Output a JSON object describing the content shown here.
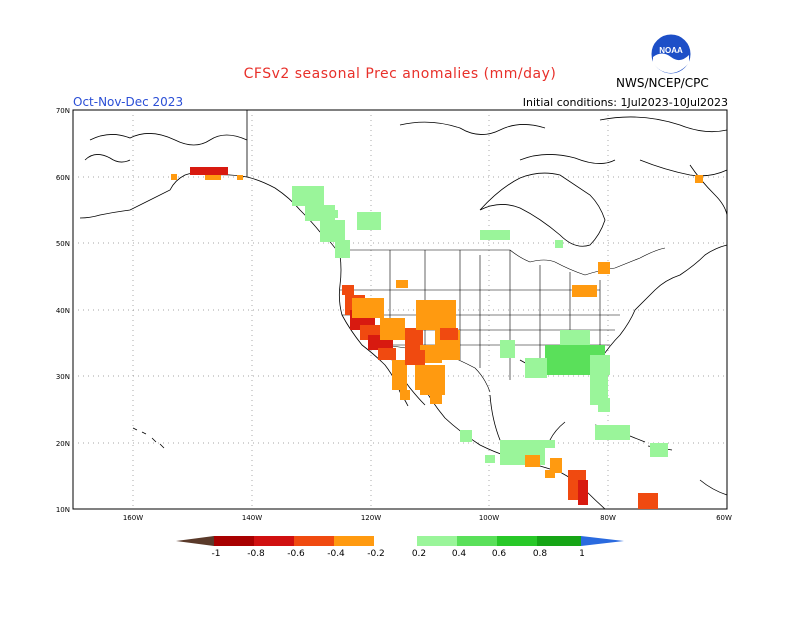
{
  "title": "CFSv2 seasonal Prec anomalies (mm/day)",
  "season": "Oct-Nov-Dec 2023",
  "initial_conditions": "Initial conditions: 1Jul2023-10Jul2023",
  "agency": "NWS/NCEP/CPC",
  "logo_text": "NOAA",
  "lat_labels": [
    "70N",
    "60N",
    "50N",
    "40N",
    "30N",
    "20N",
    "10N"
  ],
  "lon_labels": [
    "160W",
    "140W",
    "120W",
    "100W",
    "80W",
    "60W"
  ],
  "colorbar": {
    "labels": [
      "-1",
      "-0.8",
      "-0.6",
      "-0.4",
      "-0.2",
      "0.2",
      "0.4",
      "0.6",
      "0.8",
      "1"
    ],
    "colors": [
      "#5a3a2a",
      "#a80000",
      "#d01010",
      "#f04a10",
      "#ff9a10",
      "#9af59a",
      "#5ae05a",
      "#28c828",
      "#16a516",
      "#2a6adf"
    ]
  },
  "colors": {
    "title": "#e8302a",
    "season": "#2b4fd6",
    "dry_strong": "#d81a10",
    "dry_mid": "#f04a10",
    "dry_weak": "#ff9a10",
    "wet_weak": "#9af59a",
    "wet_mid": "#5ae05a"
  }
}
